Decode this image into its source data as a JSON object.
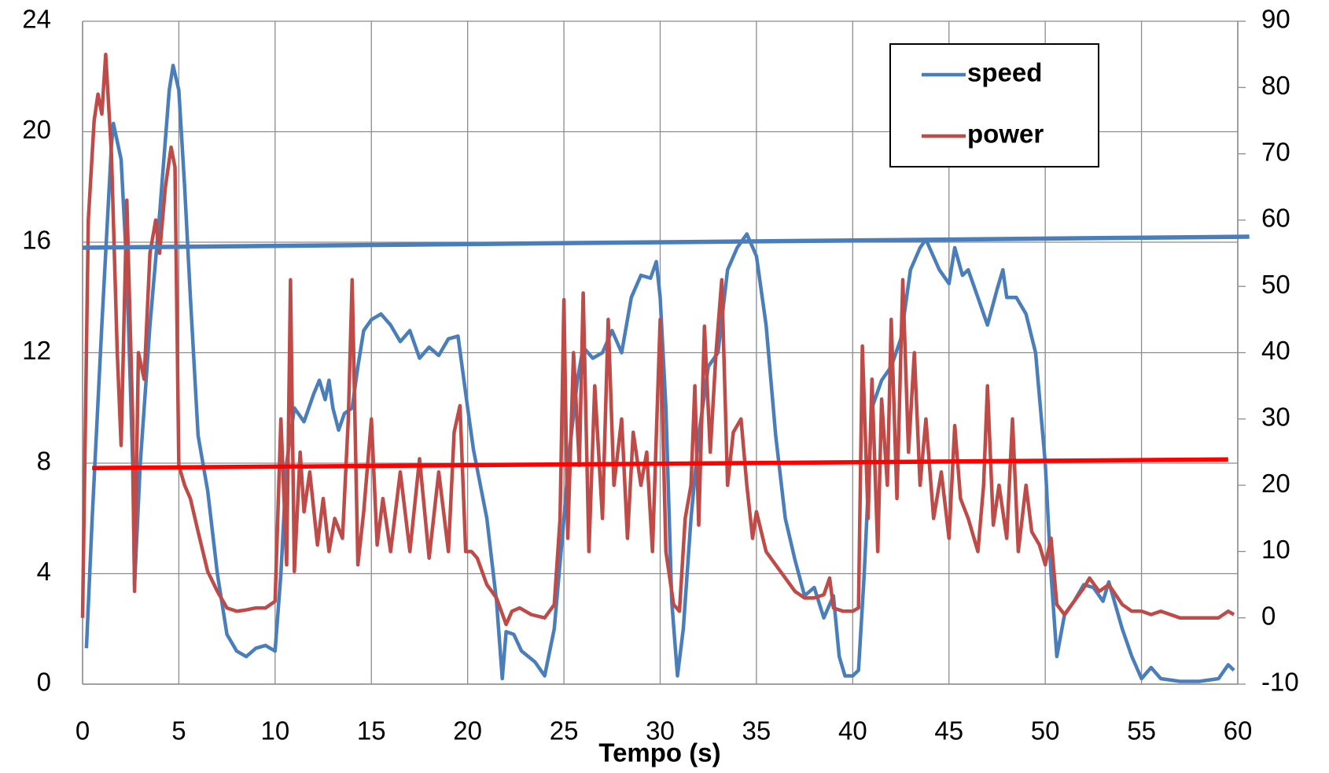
{
  "chart_data": {
    "type": "line",
    "xlabel": "Tempo (s)",
    "xlim": [
      0,
      60
    ],
    "xticks": [
      0,
      5,
      10,
      15,
      20,
      25,
      30,
      35,
      40,
      45,
      50,
      55,
      60
    ],
    "ylim": [
      0,
      24
    ],
    "yticks": [
      0,
      4,
      8,
      12,
      16,
      20,
      24
    ],
    "y2lim": [
      -10,
      90
    ],
    "y2ticks": [
      -10,
      0,
      10,
      20,
      30,
      40,
      50,
      60,
      70,
      80,
      90
    ],
    "grid": true,
    "legend": "top-right",
    "series": [
      {
        "name": "speed",
        "color": "#4a7ebb",
        "axis": "y",
        "x": [
          0.2,
          0.5,
          1,
          1.5,
          1.6,
          2,
          2.3,
          2.6,
          2.7,
          3,
          3.5,
          4,
          4.5,
          4.7,
          5,
          5.3,
          5.6,
          6,
          6.5,
          7,
          7.5,
          8,
          8.5,
          9,
          9.5,
          10,
          10.3,
          10.6,
          11,
          11.5,
          12,
          12.3,
          12.6,
          12.8,
          13,
          13.3,
          13.6,
          14,
          14.3,
          14.6,
          15,
          15.5,
          16,
          16.5,
          17,
          17.5,
          18,
          18.5,
          19,
          19.5,
          20,
          20.3,
          21,
          21.5,
          21.8,
          22,
          22.4,
          22.8,
          23.5,
          24,
          24.5,
          25,
          25.3,
          25.7,
          26,
          26.5,
          27,
          27.5,
          28,
          28.5,
          29,
          29.5,
          29.8,
          30,
          30.3,
          30.6,
          30.9,
          31.2,
          31.6,
          32,
          32.5,
          33,
          33.5,
          34,
          34.5,
          35,
          35.5,
          36,
          36.5,
          37,
          37.5,
          38,
          38.5,
          39,
          39.3,
          39.6,
          40,
          40.3,
          40.6,
          41,
          41.5,
          42,
          42.5,
          43,
          43.5,
          43.8,
          44.5,
          45,
          45.3,
          45.7,
          46,
          46.5,
          47,
          47.5,
          47.8,
          48,
          48.5,
          49,
          49.5,
          50,
          50.3,
          50.6,
          51,
          51.5,
          52,
          52.5,
          53,
          53.3,
          54,
          54.5,
          55,
          55.5,
          56,
          57,
          58,
          59,
          59.5,
          59.8
        ],
        "values": [
          1.3,
          6,
          13,
          19.5,
          20.3,
          19,
          15,
          8,
          3.6,
          8,
          13,
          17,
          21.5,
          22.4,
          21.5,
          18,
          14,
          9,
          7,
          4,
          1.8,
          1.2,
          1.0,
          1.3,
          1.4,
          1.2,
          4,
          8,
          10,
          9.5,
          10.5,
          11,
          10.3,
          11,
          10,
          9.2,
          9.8,
          10,
          11.5,
          12.8,
          13.2,
          13.4,
          13,
          12.4,
          12.8,
          11.8,
          12.2,
          11.9,
          12.5,
          12.6,
          10,
          8.5,
          6,
          3,
          0.2,
          1.9,
          1.8,
          1.2,
          0.8,
          0.3,
          2,
          6,
          8.5,
          11,
          12.2,
          11.8,
          12,
          12.8,
          12,
          14,
          14.8,
          14.7,
          15.3,
          14,
          10,
          3,
          0.3,
          2,
          6,
          9,
          11.5,
          12,
          15,
          15.8,
          16.3,
          15.5,
          13,
          9,
          6,
          4.5,
          3.2,
          3.5,
          2.4,
          3.2,
          1,
          0.3,
          0.3,
          0.5,
          4,
          10,
          11,
          11.5,
          12.5,
          15,
          15.8,
          16.1,
          15,
          14.5,
          15.8,
          14.8,
          15,
          14,
          13,
          14.3,
          15,
          14,
          14,
          13.4,
          12,
          8,
          4,
          1,
          2.5,
          3,
          3.6,
          3.5,
          3.0,
          3.7,
          2,
          1,
          0.2,
          0.6,
          0.2,
          0.1,
          0.1,
          0.2,
          0.7,
          0.5
        ]
      },
      {
        "name": "power",
        "color": "#be4b48",
        "axis": "y2",
        "x": [
          0,
          0.3,
          0.6,
          0.8,
          1,
          1.2,
          1.5,
          1.8,
          2,
          2.3,
          2.6,
          2.7,
          2.9,
          3.2,
          3.5,
          3.8,
          4,
          4.3,
          4.6,
          4.8,
          5,
          5.3,
          5.6,
          6,
          6.5,
          7,
          7.5,
          8,
          8.5,
          9,
          9.5,
          10,
          10.3,
          10.6,
          10.8,
          11,
          11.3,
          11.5,
          11.8,
          12.2,
          12.5,
          12.8,
          13.1,
          13.5,
          13.8,
          14,
          14.3,
          14.6,
          15,
          15.3,
          15.6,
          16,
          16.5,
          17,
          17.5,
          18,
          18.5,
          19,
          19.3,
          19.6,
          19.9,
          20.2,
          20.5,
          21,
          21.5,
          22,
          22.3,
          22.7,
          23.3,
          24,
          24.5,
          24.8,
          25,
          25.2,
          25.5,
          25.8,
          26,
          26.3,
          26.6,
          27,
          27.3,
          27.6,
          28,
          28.3,
          28.6,
          29,
          29.3,
          29.6,
          30,
          30.3,
          30.7,
          31,
          31.3,
          31.6,
          31.8,
          32,
          32.3,
          32.6,
          32.9,
          33.2,
          33.5,
          33.8,
          34.2,
          34.5,
          34.8,
          35,
          35.5,
          36,
          36.5,
          37,
          37.5,
          38,
          38.5,
          38.8,
          39,
          39.5,
          40,
          40.3,
          40.5,
          40.8,
          41,
          41.3,
          41.5,
          41.8,
          42,
          42.3,
          42.6,
          42.9,
          43.2,
          43.5,
          43.8,
          44.2,
          44.6,
          45,
          45.3,
          45.6,
          46,
          46.5,
          46.8,
          47,
          47.3,
          47.6,
          48,
          48.3,
          48.6,
          49,
          49.3,
          49.7,
          50,
          50.3,
          50.6,
          51,
          51.5,
          52,
          52.3,
          52.8,
          53.3,
          54,
          54.5,
          55,
          55.5,
          56,
          57,
          58,
          59,
          59.5,
          59.8
        ],
        "values": [
          0,
          60,
          75,
          79,
          76,
          85,
          70,
          40,
          26,
          63,
          30,
          4,
          40,
          36,
          55,
          60,
          55,
          65,
          71,
          68,
          23,
          20,
          18,
          13,
          7,
          4,
          1.5,
          1,
          1.2,
          1.5,
          1.5,
          2.5,
          30,
          8,
          51,
          7,
          25,
          16,
          22,
          11,
          18,
          10,
          15,
          12,
          30,
          51,
          8,
          16,
          30,
          11,
          18,
          10,
          22,
          10,
          24,
          9,
          22,
          10,
          28,
          32,
          10,
          10,
          9,
          5,
          3,
          -1,
          1,
          1.5,
          0.5,
          0,
          2,
          15,
          48,
          12,
          40,
          23,
          49,
          10,
          35,
          15,
          45,
          20,
          30,
          12,
          28,
          20,
          25,
          10,
          45,
          10,
          2,
          1,
          15,
          20,
          35,
          14,
          44,
          25,
          40,
          51,
          20,
          28,
          30,
          20,
          12,
          16,
          10,
          8,
          6,
          4,
          3,
          3,
          3.5,
          6,
          1.5,
          1,
          1,
          1.5,
          41,
          15,
          36,
          10,
          33,
          20,
          45,
          18,
          51,
          25,
          40,
          20,
          30,
          15,
          22,
          12,
          29,
          18,
          15,
          10,
          20,
          35,
          14,
          20,
          12,
          30,
          10,
          20,
          13,
          11,
          8,
          12,
          2,
          0.5,
          2.5,
          4.5,
          6,
          4,
          5,
          2,
          1,
          1,
          0.5,
          1,
          0,
          0,
          0,
          1,
          0.5
        ]
      }
    ],
    "trendlines": [
      {
        "color": "#4a7ebb",
        "axis": "y",
        "x": [
          0,
          60.6
        ],
        "values": [
          15.8,
          16.2
        ]
      },
      {
        "color": "#ff0000",
        "axis": "y2",
        "x": [
          0.5,
          59.5
        ],
        "values": [
          22.6,
          23.9
        ]
      }
    ]
  }
}
